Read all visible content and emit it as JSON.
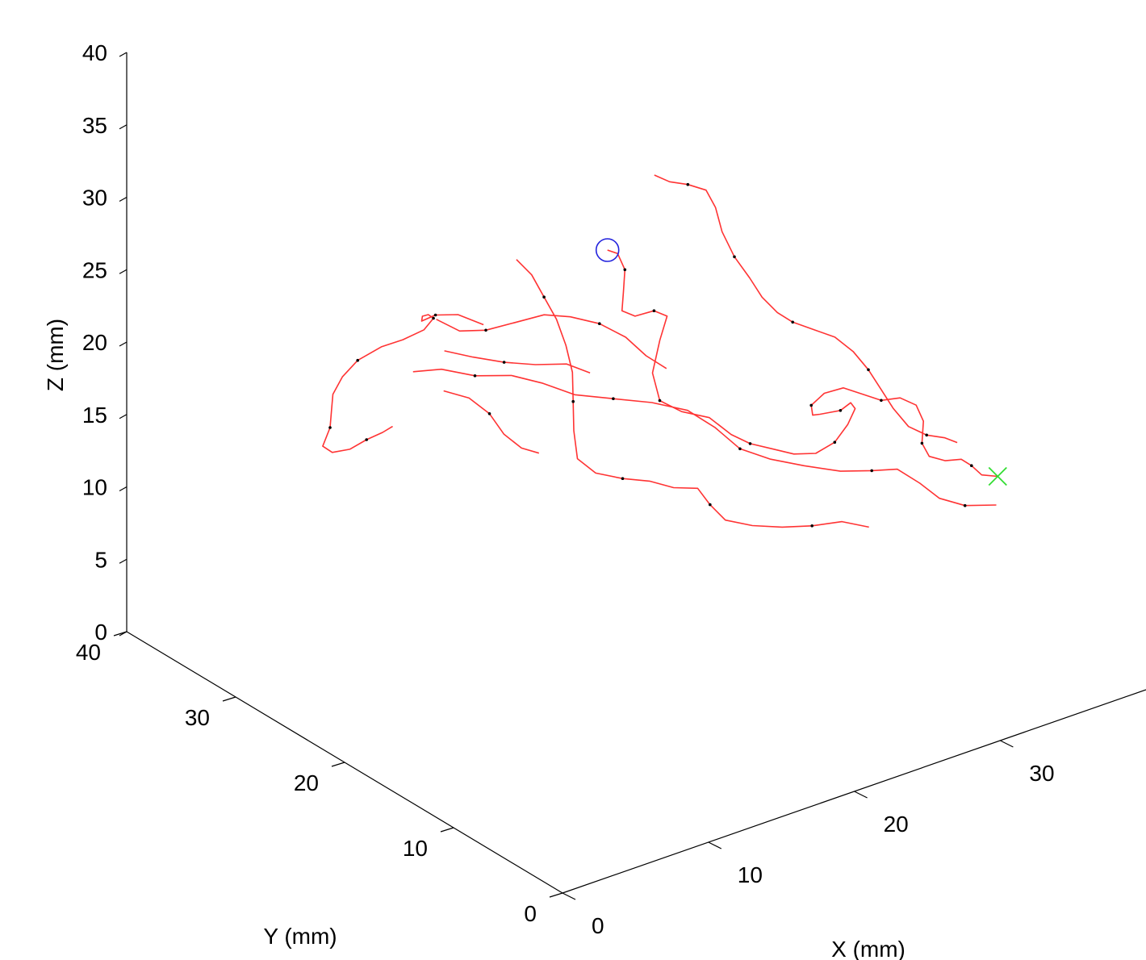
{
  "chart_data": {
    "type": "line",
    "projection": "3d",
    "title": "",
    "xlabel": "X (mm)",
    "ylabel": "Y (mm)",
    "zlabel": "Z (mm)",
    "xlim": [
      0,
      40
    ],
    "ylim": [
      0,
      40
    ],
    "zlim": [
      0,
      40
    ],
    "x_ticks": [
      "0",
      "10",
      "20",
      "30"
    ],
    "y_ticks": [
      "0",
      "10",
      "20",
      "30",
      "40"
    ],
    "z_ticks": [
      "0",
      "5",
      "10",
      "15",
      "20",
      "25",
      "30",
      "35",
      "40"
    ],
    "grid": false,
    "colors": {
      "trajectory": "#ff3333",
      "start_marker": "#2222dd",
      "end_marker": "#33dd33",
      "sample_points": "#000000"
    },
    "series": [
      {
        "marker_start": "circle",
        "marker_end": "x",
        "points": [
          [
            21.0,
            24.0,
            26.2
          ],
          [
            21.4,
            23.6,
            26.0
          ],
          [
            21.6,
            23.2,
            25.0
          ],
          [
            21.2,
            22.8,
            23.8
          ],
          [
            20.8,
            22.4,
            22.8
          ],
          [
            21.4,
            22.0,
            22.4
          ],
          [
            22.4,
            21.6,
            22.6
          ],
          [
            23.0,
            21.2,
            22.2
          ],
          [
            22.2,
            20.8,
            21.0
          ],
          [
            21.4,
            20.4,
            19.2
          ],
          [
            21.6,
            20.0,
            17.4
          ],
          [
            22.8,
            19.6,
            16.4
          ],
          [
            24.4,
            19.2,
            15.6
          ],
          [
            25.6,
            18.8,
            14.2
          ],
          [
            26.6,
            18.4,
            13.4
          ],
          [
            27.8,
            18.0,
            12.8
          ],
          [
            29.0,
            17.6,
            12.2
          ],
          [
            30.2,
            17.2,
            12.0
          ],
          [
            31.2,
            16.8,
            12.6
          ],
          [
            31.8,
            16.4,
            13.8
          ],
          [
            32.0,
            16.0,
            15.0
          ],
          [
            31.4,
            15.6,
            15.8
          ],
          [
            30.4,
            15.2,
            15.8
          ],
          [
            29.4,
            14.8,
            16.2
          ],
          [
            28.4,
            14.4,
            16.6
          ],
          [
            27.6,
            14.0,
            17.0
          ],
          [
            27.2,
            13.6,
            18.0
          ],
          [
            27.8,
            13.2,
            18.8
          ],
          [
            28.8,
            12.8,
            19.0
          ],
          [
            29.8,
            12.4,
            18.4
          ],
          [
            30.8,
            12.0,
            17.8
          ],
          [
            31.8,
            11.6,
            17.8
          ],
          [
            32.6,
            11.2,
            17.2
          ],
          [
            32.8,
            10.8,
            16.2
          ],
          [
            32.4,
            10.4,
            15.0
          ],
          [
            32.6,
            10.0,
            14.2
          ],
          [
            33.4,
            9.6,
            13.8
          ],
          [
            34.2,
            9.2,
            13.8
          ],
          [
            34.6,
            8.8,
            13.4
          ],
          [
            35.0,
            8.4,
            12.8
          ],
          [
            35.8,
            8.0,
            12.6
          ]
        ]
      },
      {
        "points": [
          [
            27.2,
            28.0,
            27.4
          ],
          [
            27.8,
            27.4,
            27.0
          ],
          [
            28.6,
            26.8,
            26.8
          ],
          [
            29.4,
            26.2,
            26.4
          ],
          [
            29.6,
            25.6,
            25.4
          ],
          [
            29.6,
            25.0,
            24.0
          ],
          [
            30.0,
            24.4,
            22.4
          ],
          [
            30.6,
            23.8,
            21.0
          ],
          [
            31.0,
            23.2,
            19.8
          ],
          [
            31.6,
            22.6,
            18.8
          ],
          [
            32.2,
            22.0,
            18.2
          ],
          [
            33.2,
            21.4,
            17.6
          ],
          [
            34.2,
            20.8,
            17.0
          ],
          [
            35.0,
            20.2,
            16.0
          ],
          [
            35.6,
            19.6,
            14.8
          ],
          [
            36.0,
            19.0,
            13.6
          ],
          [
            36.4,
            18.4,
            12.4
          ],
          [
            37.0,
            17.8,
            11.2
          ],
          [
            37.8,
            17.2,
            10.6
          ],
          [
            38.6,
            16.6,
            10.4
          ],
          [
            39.0,
            16.0,
            10.2
          ]
        ]
      },
      {
        "points": [
          [
            14.0,
            26.0,
            22.6
          ],
          [
            13.0,
            27.0,
            23.2
          ],
          [
            12.2,
            28.0,
            23.0
          ],
          [
            12.0,
            29.0,
            22.2
          ],
          [
            12.8,
            30.0,
            21.8
          ],
          [
            13.8,
            30.8,
            21.2
          ],
          [
            14.6,
            31.4,
            20.4
          ],
          [
            14.4,
            32.0,
            19.4
          ],
          [
            13.4,
            32.6,
            18.8
          ],
          [
            12.4,
            33.2,
            18.4
          ],
          [
            11.2,
            33.8,
            17.6
          ],
          [
            10.6,
            34.4,
            16.4
          ],
          [
            10.4,
            35.0,
            15.0
          ],
          [
            10.6,
            35.4,
            13.6
          ],
          [
            10.8,
            35.8,
            12.2
          ],
          [
            10.6,
            36.2,
            10.8
          ],
          [
            11.4,
            36.4,
            10.0
          ],
          [
            12.6,
            36.4,
            9.8
          ],
          [
            13.6,
            36.2,
            10.2
          ],
          [
            14.4,
            35.8,
            10.6
          ],
          [
            14.6,
            35.2,
            11.2
          ],
          [
            14.2,
            34.6,
            11.6
          ]
        ]
      },
      {
        "points": [
          [
            13.2,
            31.4,
            17.2
          ],
          [
            14.4,
            30.4,
            17.4
          ],
          [
            15.8,
            29.2,
            17.0
          ],
          [
            17.4,
            28.0,
            17.0
          ],
          [
            18.6,
            26.8,
            16.6
          ],
          [
            19.8,
            25.4,
            16.0
          ],
          [
            21.4,
            24.0,
            15.8
          ],
          [
            23.0,
            22.6,
            15.6
          ],
          [
            24.4,
            21.2,
            15.2
          ],
          [
            25.4,
            20.0,
            14.2
          ],
          [
            26.2,
            18.8,
            13.0
          ],
          [
            27.4,
            17.6,
            12.4
          ],
          [
            28.8,
            16.4,
            12.0
          ],
          [
            30.4,
            15.2,
            11.6
          ],
          [
            31.8,
            14.2,
            11.6
          ],
          [
            32.8,
            13.2,
            11.8
          ],
          [
            33.6,
            12.2,
            11.0
          ],
          [
            34.2,
            11.2,
            10.2
          ],
          [
            35.2,
            10.2,
            9.8
          ],
          [
            36.6,
            9.2,
            9.8
          ]
        ]
      },
      {
        "points": [
          [
            17.0,
            27.0,
            25.6
          ],
          [
            17.6,
            26.4,
            24.6
          ],
          [
            18.0,
            25.8,
            23.2
          ],
          [
            18.4,
            25.2,
            21.8
          ],
          [
            18.6,
            24.6,
            20.2
          ],
          [
            18.6,
            24.0,
            18.6
          ],
          [
            18.2,
            23.4,
            17.0
          ],
          [
            17.8,
            22.8,
            15.4
          ],
          [
            17.6,
            22.2,
            13.8
          ],
          [
            18.4,
            21.6,
            12.8
          ],
          [
            19.8,
            21.0,
            12.2
          ],
          [
            21.2,
            20.4,
            11.8
          ],
          [
            22.4,
            19.8,
            11.2
          ],
          [
            23.6,
            19.2,
            11.0
          ],
          [
            24.0,
            18.6,
            10.0
          ],
          [
            24.6,
            18.0,
            9.0
          ],
          [
            26.0,
            17.4,
            8.4
          ],
          [
            27.6,
            16.8,
            8.0
          ],
          [
            29.2,
            16.2,
            7.8
          ],
          [
            30.8,
            15.6,
            7.8
          ],
          [
            32.2,
            15.0,
            7.2
          ]
        ]
      },
      {
        "points": [
          [
            13.6,
            29.8,
            21.4
          ],
          [
            14.6,
            29.0,
            20.6
          ],
          [
            15.8,
            28.2,
            20.6
          ],
          [
            17.2,
            27.4,
            21.0
          ],
          [
            18.6,
            26.6,
            21.4
          ],
          [
            19.8,
            25.8,
            21.2
          ],
          [
            21.2,
            25.0,
            20.6
          ],
          [
            22.4,
            24.2,
            19.6
          ],
          [
            23.2,
            23.4,
            18.4
          ],
          [
            24.0,
            22.6,
            17.6
          ]
        ]
      },
      {
        "points": [
          [
            14.4,
            30.2,
            16.0
          ],
          [
            15.4,
            29.2,
            15.6
          ],
          [
            16.2,
            28.4,
            14.6
          ],
          [
            16.6,
            27.6,
            13.4
          ],
          [
            17.2,
            26.8,
            12.6
          ],
          [
            17.8,
            26.0,
            12.4
          ]
        ]
      },
      {
        "points": [
          [
            14.6,
            30.4,
            18.6
          ],
          [
            15.8,
            29.4,
            18.2
          ],
          [
            17.2,
            28.4,
            17.8
          ],
          [
            18.6,
            27.4,
            17.6
          ],
          [
            20.0,
            26.4,
            17.6
          ],
          [
            21.0,
            25.6,
            17.0
          ]
        ]
      }
    ]
  }
}
